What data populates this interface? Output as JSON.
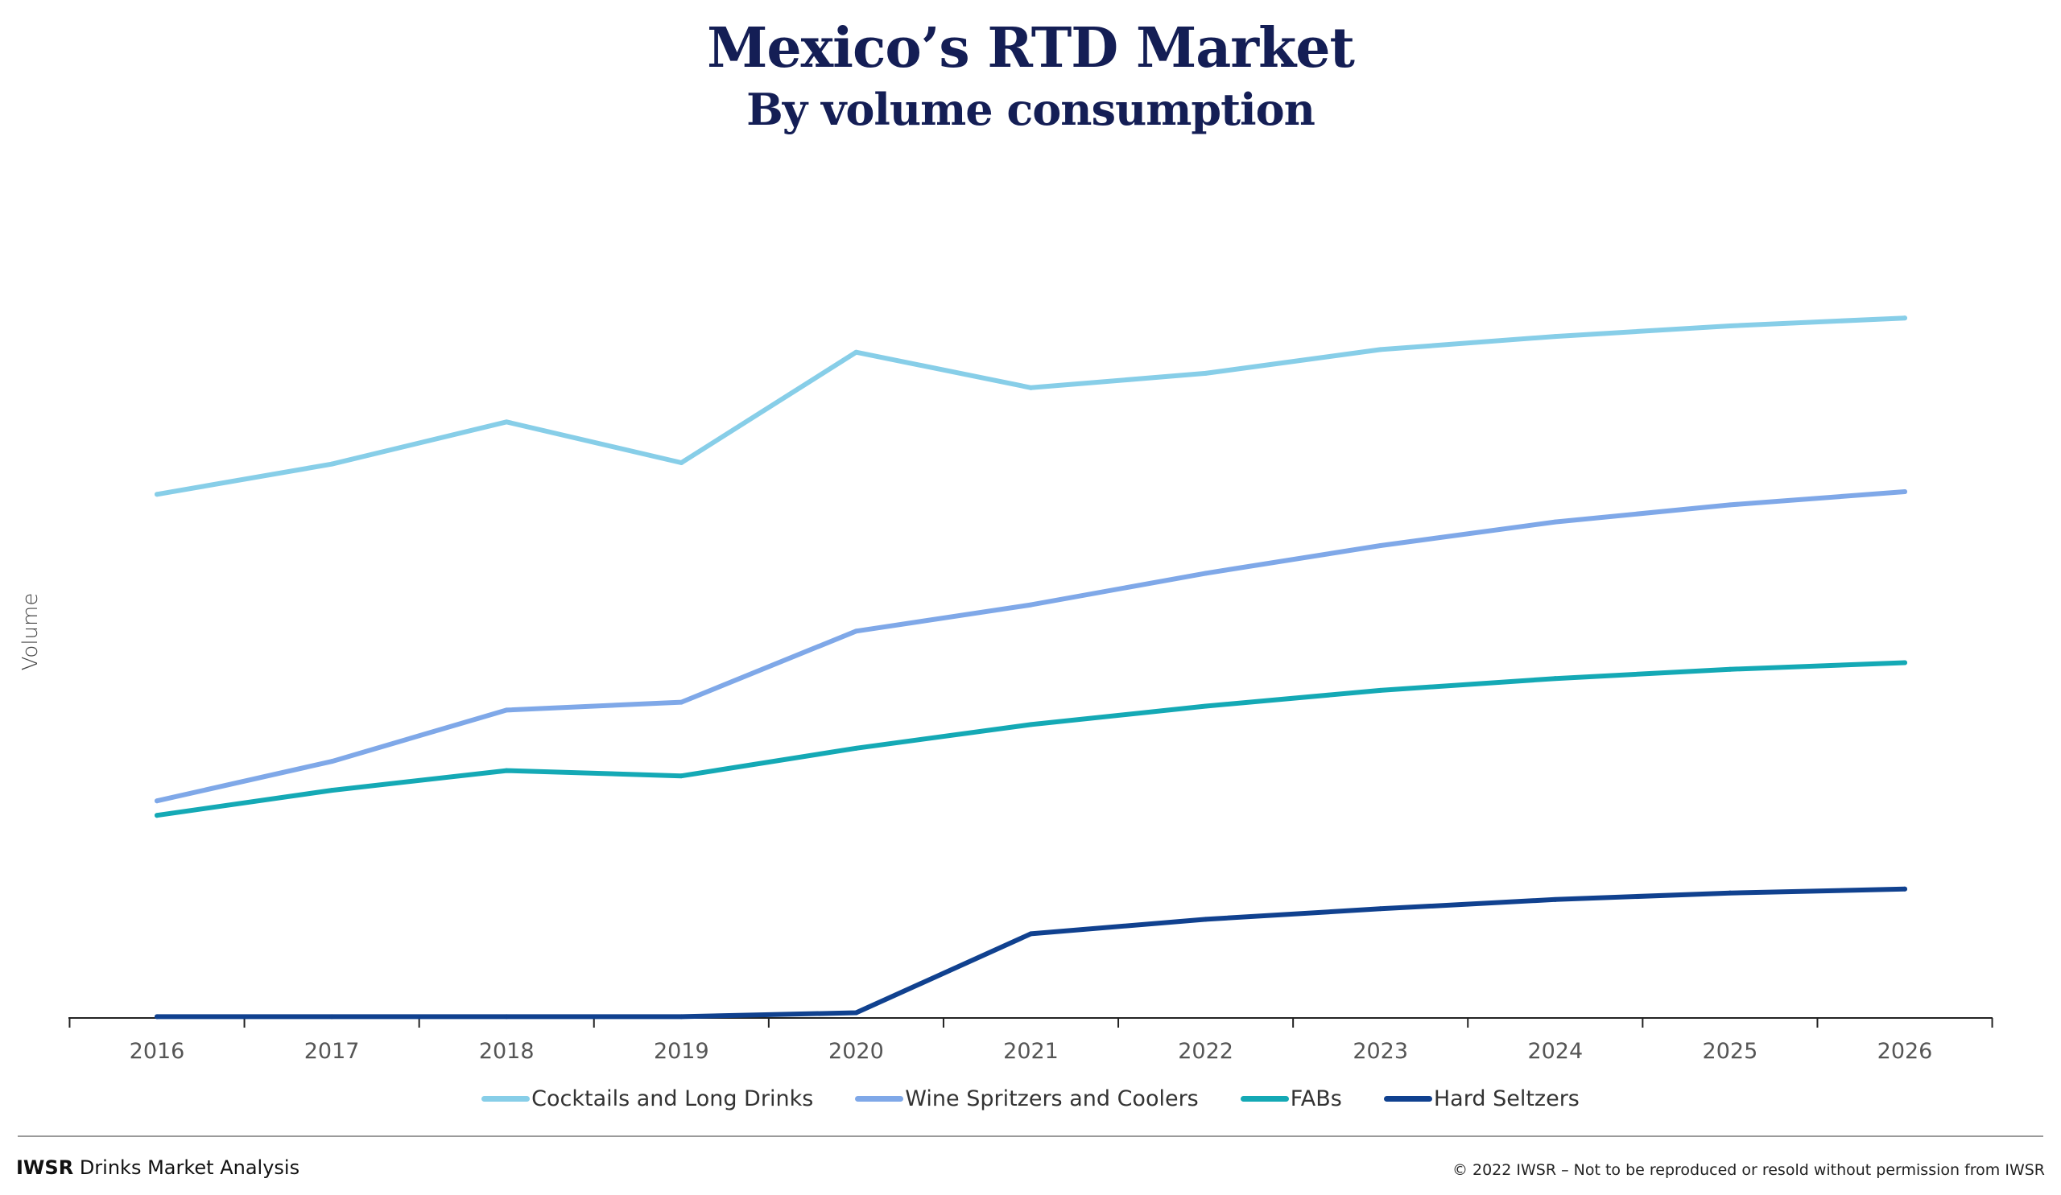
{
  "header": {
    "title": "Mexico’s RTD Market",
    "subtitle": "By volume consumption"
  },
  "footer": {
    "brand": "IWSR",
    "brand_suffix": "Drinks Market Analysis",
    "copyright": "© 2022 IWSR – Not to be reproduced or resold without permission from IWSR"
  },
  "chart_data": {
    "type": "line",
    "title": "Mexico’s RTD Market",
    "subtitle": "By volume consumption",
    "xlabel": "",
    "ylabel": "Volume",
    "y_units_note": "relative volume index (no y-axis ticks shown)",
    "ylim": [
      0,
      640
    ],
    "grid": false,
    "legend_position": "bottom-center",
    "x": [
      "2016",
      "2017",
      "2018",
      "2019",
      "2020",
      "2021",
      "2022",
      "2023",
      "2024",
      "2025",
      "2026"
    ],
    "series": [
      {
        "name": "Cocktails and Long Drinks",
        "color": "#87CEE8",
        "values": [
          398,
          421,
          453,
          422,
          506,
          479,
          490,
          508,
          518,
          526,
          532
        ]
      },
      {
        "name": "Wine Spritzers and Coolers",
        "color": "#7FA8E8",
        "values": [
          165,
          195,
          234,
          240,
          294,
          314,
          338,
          359,
          377,
          390,
          400
        ]
      },
      {
        "name": "FABs",
        "color": "#14A9B5",
        "values": [
          154,
          173,
          188,
          184,
          205,
          223,
          237,
          249,
          258,
          265,
          270
        ]
      },
      {
        "name": "Hard Seltzers",
        "color": "#10418F",
        "values": [
          1,
          1,
          1,
          1,
          4,
          64,
          75,
          83,
          90,
          95,
          98
        ]
      }
    ]
  }
}
